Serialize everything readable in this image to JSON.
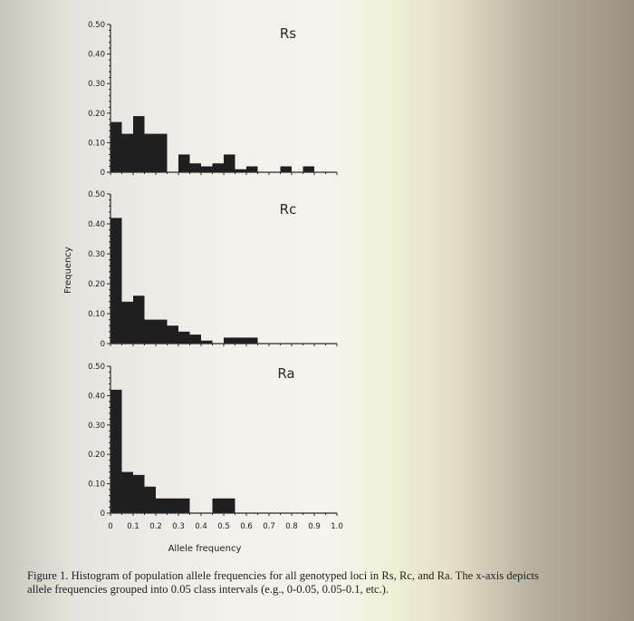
{
  "figure": {
    "ylabel": "Frequency",
    "xlabel": "Allele frequency",
    "caption_line1": "Figure 1. Histogram of population allele frequencies for all genotyped loci in Rs, Rc, and Ra. The x-axis depicts",
    "caption_line2": "allele frequencies grouped into 0.05 class intervals (e.g., 0-0.05, 0.05-0.1, etc.).",
    "bar_color": "#1f1f1f"
  },
  "chart_data": [
    {
      "type": "bar",
      "title": "Rs",
      "xlim": [
        0,
        1.0
      ],
      "ylim": [
        0,
        0.5
      ],
      "yticks": [
        "0",
        "0.10",
        "0.20",
        "0.30",
        "0.40",
        "0.50"
      ],
      "bin_width": 0.05,
      "bins": [
        0,
        0.05,
        0.1,
        0.15,
        0.2,
        0.25,
        0.3,
        0.35,
        0.4,
        0.45,
        0.5,
        0.55,
        0.6,
        0.65,
        0.7,
        0.75,
        0.8,
        0.85,
        0.9,
        0.95
      ],
      "values": [
        0.17,
        0.13,
        0.19,
        0.13,
        0.13,
        0.0,
        0.06,
        0.03,
        0.02,
        0.03,
        0.06,
        0.01,
        0.02,
        0.0,
        0.0,
        0.02,
        0.0,
        0.02,
        0.0,
        0.0
      ]
    },
    {
      "type": "bar",
      "title": "Rc",
      "xlim": [
        0,
        1.0
      ],
      "ylim": [
        0,
        0.5
      ],
      "yticks": [
        "0",
        "0.10",
        "0.20",
        "0.30",
        "0.40",
        "0.50"
      ],
      "bin_width": 0.05,
      "bins": [
        0,
        0.05,
        0.1,
        0.15,
        0.2,
        0.25,
        0.3,
        0.35,
        0.4,
        0.45,
        0.5,
        0.55,
        0.6,
        0.65,
        0.7,
        0.75,
        0.8,
        0.85,
        0.9,
        0.95
      ],
      "values": [
        0.42,
        0.14,
        0.16,
        0.08,
        0.08,
        0.06,
        0.04,
        0.03,
        0.01,
        0.0,
        0.02,
        0.02,
        0.02,
        0.0,
        0.0,
        0.0,
        0.0,
        0.0,
        0.0,
        0.0
      ]
    },
    {
      "type": "bar",
      "title": "Ra",
      "xlim": [
        0,
        1.0
      ],
      "ylim": [
        0,
        0.5
      ],
      "yticks": [
        "0",
        "0.10",
        "0.20",
        "0.30",
        "0.40",
        "0.50"
      ],
      "xticks": [
        "0",
        "0.1",
        "0.2",
        "0.3",
        "0.4",
        "0.5",
        "0.6",
        "0.7",
        "0.8",
        "0.9",
        "1.0"
      ],
      "bin_width": 0.05,
      "bins": [
        0,
        0.05,
        0.1,
        0.15,
        0.2,
        0.25,
        0.3,
        0.35,
        0.4,
        0.45,
        0.5,
        0.55,
        0.6,
        0.65,
        0.7,
        0.75,
        0.8,
        0.85,
        0.9,
        0.95
      ],
      "values": [
        0.42,
        0.14,
        0.13,
        0.09,
        0.05,
        0.05,
        0.05,
        0.0,
        0.0,
        0.05,
        0.05,
        0.0,
        0.0,
        0.0,
        0.0,
        0.0,
        0.0,
        0.0,
        0.0,
        0.0
      ]
    }
  ]
}
